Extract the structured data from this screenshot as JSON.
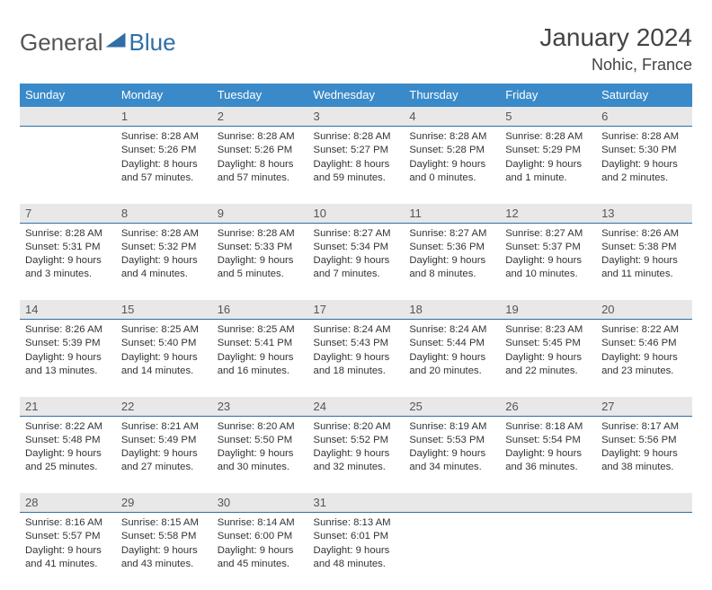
{
  "brand": {
    "part1": "General",
    "part2": "Blue"
  },
  "title": {
    "month": "January 2024",
    "location": "Nohic, France"
  },
  "colors": {
    "header_bg": "#3a8ac9",
    "header_text": "#ffffff",
    "daynum_bg": "#e8e8e8",
    "rule": "#2f6fa7",
    "body_text": "#333333",
    "page_bg": "#ffffff"
  },
  "table": {
    "type": "calendar",
    "columns": [
      "Sunday",
      "Monday",
      "Tuesday",
      "Wednesday",
      "Thursday",
      "Friday",
      "Saturday"
    ],
    "col_width_pct": 14.28,
    "header_fontsize": 13,
    "cell_fontsize": 11.3,
    "weeks": [
      {
        "nums": [
          "",
          "1",
          "2",
          "3",
          "4",
          "5",
          "6"
        ],
        "cells": [
          {
            "sunrise": "",
            "sunset": "",
            "daylight": ""
          },
          {
            "sunrise": "Sunrise: 8:28 AM",
            "sunset": "Sunset: 5:26 PM",
            "daylight": "Daylight: 8 hours and 57 minutes."
          },
          {
            "sunrise": "Sunrise: 8:28 AM",
            "sunset": "Sunset: 5:26 PM",
            "daylight": "Daylight: 8 hours and 57 minutes."
          },
          {
            "sunrise": "Sunrise: 8:28 AM",
            "sunset": "Sunset: 5:27 PM",
            "daylight": "Daylight: 8 hours and 59 minutes."
          },
          {
            "sunrise": "Sunrise: 8:28 AM",
            "sunset": "Sunset: 5:28 PM",
            "daylight": "Daylight: 9 hours and 0 minutes."
          },
          {
            "sunrise": "Sunrise: 8:28 AM",
            "sunset": "Sunset: 5:29 PM",
            "daylight": "Daylight: 9 hours and 1 minute."
          },
          {
            "sunrise": "Sunrise: 8:28 AM",
            "sunset": "Sunset: 5:30 PM",
            "daylight": "Daylight: 9 hours and 2 minutes."
          }
        ]
      },
      {
        "nums": [
          "7",
          "8",
          "9",
          "10",
          "11",
          "12",
          "13"
        ],
        "cells": [
          {
            "sunrise": "Sunrise: 8:28 AM",
            "sunset": "Sunset: 5:31 PM",
            "daylight": "Daylight: 9 hours and 3 minutes."
          },
          {
            "sunrise": "Sunrise: 8:28 AM",
            "sunset": "Sunset: 5:32 PM",
            "daylight": "Daylight: 9 hours and 4 minutes."
          },
          {
            "sunrise": "Sunrise: 8:28 AM",
            "sunset": "Sunset: 5:33 PM",
            "daylight": "Daylight: 9 hours and 5 minutes."
          },
          {
            "sunrise": "Sunrise: 8:27 AM",
            "sunset": "Sunset: 5:34 PM",
            "daylight": "Daylight: 9 hours and 7 minutes."
          },
          {
            "sunrise": "Sunrise: 8:27 AM",
            "sunset": "Sunset: 5:36 PM",
            "daylight": "Daylight: 9 hours and 8 minutes."
          },
          {
            "sunrise": "Sunrise: 8:27 AM",
            "sunset": "Sunset: 5:37 PM",
            "daylight": "Daylight: 9 hours and 10 minutes."
          },
          {
            "sunrise": "Sunrise: 8:26 AM",
            "sunset": "Sunset: 5:38 PM",
            "daylight": "Daylight: 9 hours and 11 minutes."
          }
        ]
      },
      {
        "nums": [
          "14",
          "15",
          "16",
          "17",
          "18",
          "19",
          "20"
        ],
        "cells": [
          {
            "sunrise": "Sunrise: 8:26 AM",
            "sunset": "Sunset: 5:39 PM",
            "daylight": "Daylight: 9 hours and 13 minutes."
          },
          {
            "sunrise": "Sunrise: 8:25 AM",
            "sunset": "Sunset: 5:40 PM",
            "daylight": "Daylight: 9 hours and 14 minutes."
          },
          {
            "sunrise": "Sunrise: 8:25 AM",
            "sunset": "Sunset: 5:41 PM",
            "daylight": "Daylight: 9 hours and 16 minutes."
          },
          {
            "sunrise": "Sunrise: 8:24 AM",
            "sunset": "Sunset: 5:43 PM",
            "daylight": "Daylight: 9 hours and 18 minutes."
          },
          {
            "sunrise": "Sunrise: 8:24 AM",
            "sunset": "Sunset: 5:44 PM",
            "daylight": "Daylight: 9 hours and 20 minutes."
          },
          {
            "sunrise": "Sunrise: 8:23 AM",
            "sunset": "Sunset: 5:45 PM",
            "daylight": "Daylight: 9 hours and 22 minutes."
          },
          {
            "sunrise": "Sunrise: 8:22 AM",
            "sunset": "Sunset: 5:46 PM",
            "daylight": "Daylight: 9 hours and 23 minutes."
          }
        ]
      },
      {
        "nums": [
          "21",
          "22",
          "23",
          "24",
          "25",
          "26",
          "27"
        ],
        "cells": [
          {
            "sunrise": "Sunrise: 8:22 AM",
            "sunset": "Sunset: 5:48 PM",
            "daylight": "Daylight: 9 hours and 25 minutes."
          },
          {
            "sunrise": "Sunrise: 8:21 AM",
            "sunset": "Sunset: 5:49 PM",
            "daylight": "Daylight: 9 hours and 27 minutes."
          },
          {
            "sunrise": "Sunrise: 8:20 AM",
            "sunset": "Sunset: 5:50 PM",
            "daylight": "Daylight: 9 hours and 30 minutes."
          },
          {
            "sunrise": "Sunrise: 8:20 AM",
            "sunset": "Sunset: 5:52 PM",
            "daylight": "Daylight: 9 hours and 32 minutes."
          },
          {
            "sunrise": "Sunrise: 8:19 AM",
            "sunset": "Sunset: 5:53 PM",
            "daylight": "Daylight: 9 hours and 34 minutes."
          },
          {
            "sunrise": "Sunrise: 8:18 AM",
            "sunset": "Sunset: 5:54 PM",
            "daylight": "Daylight: 9 hours and 36 minutes."
          },
          {
            "sunrise": "Sunrise: 8:17 AM",
            "sunset": "Sunset: 5:56 PM",
            "daylight": "Daylight: 9 hours and 38 minutes."
          }
        ]
      },
      {
        "nums": [
          "28",
          "29",
          "30",
          "31",
          "",
          "",
          ""
        ],
        "cells": [
          {
            "sunrise": "Sunrise: 8:16 AM",
            "sunset": "Sunset: 5:57 PM",
            "daylight": "Daylight: 9 hours and 41 minutes."
          },
          {
            "sunrise": "Sunrise: 8:15 AM",
            "sunset": "Sunset: 5:58 PM",
            "daylight": "Daylight: 9 hours and 43 minutes."
          },
          {
            "sunrise": "Sunrise: 8:14 AM",
            "sunset": "Sunset: 6:00 PM",
            "daylight": "Daylight: 9 hours and 45 minutes."
          },
          {
            "sunrise": "Sunrise: 8:13 AM",
            "sunset": "Sunset: 6:01 PM",
            "daylight": "Daylight: 9 hours and 48 minutes."
          },
          {
            "sunrise": "",
            "sunset": "",
            "daylight": ""
          },
          {
            "sunrise": "",
            "sunset": "",
            "daylight": ""
          },
          {
            "sunrise": "",
            "sunset": "",
            "daylight": ""
          }
        ]
      }
    ]
  }
}
